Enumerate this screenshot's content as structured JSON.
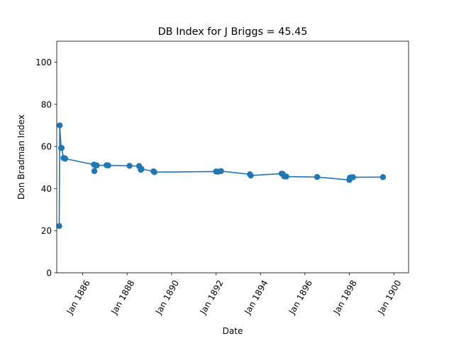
{
  "chart_data": {
    "type": "line",
    "title": "DB Index for J Briggs = 45.45",
    "xlabel": "Date",
    "ylabel": "Don Bradman Index",
    "x_type": "date",
    "xlim": [
      "1884-11-01",
      "1900-09-01"
    ],
    "ylim": [
      0,
      110
    ],
    "x_ticks": [
      {
        "date": "1886-01-01",
        "label": "Jan 1886"
      },
      {
        "date": "1888-01-01",
        "label": "Jan 1888"
      },
      {
        "date": "1890-01-01",
        "label": "Jan 1890"
      },
      {
        "date": "1892-01-01",
        "label": "Jan 1892"
      },
      {
        "date": "1894-01-01",
        "label": "Jan 1894"
      },
      {
        "date": "1896-01-01",
        "label": "Jan 1896"
      },
      {
        "date": "1898-01-01",
        "label": "Jan 1898"
      },
      {
        "date": "1900-01-01",
        "label": "Jan 1900"
      }
    ],
    "y_ticks": [
      0,
      20,
      40,
      60,
      80,
      100
    ],
    "grid": false,
    "color": "#1f77b4",
    "series": [
      {
        "x": [
          "1884-12-12",
          "1884-12-20",
          "1885-01-12",
          "1885-01-20",
          "1885-02-20",
          "1885-03-12",
          "1885-03-20",
          "1886-07-05",
          "1886-07-12",
          "1886-08-19",
          "1887-01-28",
          "1887-02-25",
          "1888-02-10",
          "1888-07-16",
          "1888-08-13",
          "1888-08-25",
          "1889-03-10",
          "1889-03-25",
          "1892-01-01",
          "1892-02-01",
          "1892-03-24",
          "1893-07-11",
          "1893-07-25",
          "1894-12-14",
          "1895-01-01",
          "1895-01-26",
          "1895-03-01",
          "1896-07-20",
          "1897-12-31",
          "1898-01-10",
          "1898-02-10",
          "1898-03-02",
          "1899-07-07"
        ],
        "y": [
          22.2,
          70.0,
          59.3,
          59.3,
          54.5,
          54.4,
          54.2,
          51.4,
          48.3,
          51.0,
          51.1,
          51.0,
          50.8,
          50.7,
          48.9,
          49.3,
          48.2,
          47.8,
          48.1,
          48.0,
          48.3,
          46.8,
          46.2,
          47.1,
          47.0,
          45.8,
          45.7,
          45.5,
          44.1,
          45.2,
          45.4,
          45.4,
          45.45
        ]
      }
    ]
  }
}
